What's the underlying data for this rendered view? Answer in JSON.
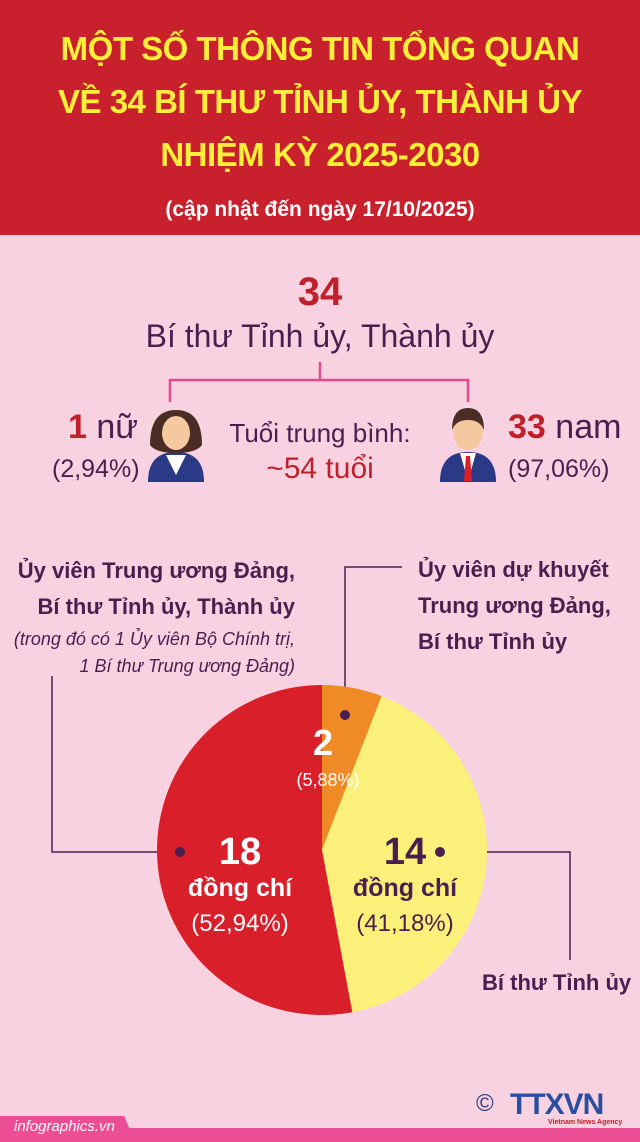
{
  "header": {
    "title_lines": [
      "MỘT SỐ THÔNG TIN TỔNG QUAN",
      "VỀ 34 BÍ THƯ TỈNH ỦY, THÀNH ỦY",
      "NHIỆM KỲ 2025-2030"
    ],
    "subtitle": "(cập nhật đến ngày 17/10/2025)"
  },
  "summary": {
    "total": "34",
    "total_label": "Bí thư Tỉnh ủy, Thành ủy",
    "female": {
      "count": "1",
      "label": "nữ",
      "pct": "(2,94%)"
    },
    "male": {
      "count": "33",
      "label": "nam",
      "pct": "(97,06%)"
    },
    "age_label": "Tuổi trung bình:",
    "age_value": "~54 tuổi"
  },
  "chart_data": {
    "type": "pie",
    "slices": [
      {
        "name": "Ủy viên dự khuyết Trung ương Đảng, Bí thư Tỉnh ủy",
        "value": 2,
        "value_label": "2",
        "pct": "(5,88%)",
        "color": "#f08a24"
      },
      {
        "name": "Bí thư Tỉnh ủy",
        "value": 14,
        "value_label": "14",
        "unit": "đồng chí",
        "pct": "(41,18%)",
        "color": "#fbf07a"
      },
      {
        "name": "Ủy viên Trung ương Đảng, Bí thư Tỉnh ủy, Thành ủy",
        "value": 18,
        "value_label": "18",
        "unit": "đồng chí",
        "pct": "(52,94%)",
        "color": "#d91f2a"
      }
    ]
  },
  "labels": {
    "left_lines": [
      "Ủy viên Trung ương Đảng,",
      "Bí thư Tỉnh ủy, Thành ủy"
    ],
    "left_note_lines": [
      "(trong đó có 1 Ủy viên Bộ Chính trị,",
      "1 Bí thư Trung ương Đảng)"
    ],
    "right_top_lines": [
      "Ủy viên dự khuyết",
      "Trung ương Đảng,",
      "Bí thư Tỉnh ủy"
    ],
    "right_bottom": "Bí thư Tỉnh ủy"
  },
  "footer": {
    "site": "infographics.vn",
    "copyright": "©",
    "logo": "TTXVN",
    "logo_sub": "Vietnam News Agency"
  }
}
